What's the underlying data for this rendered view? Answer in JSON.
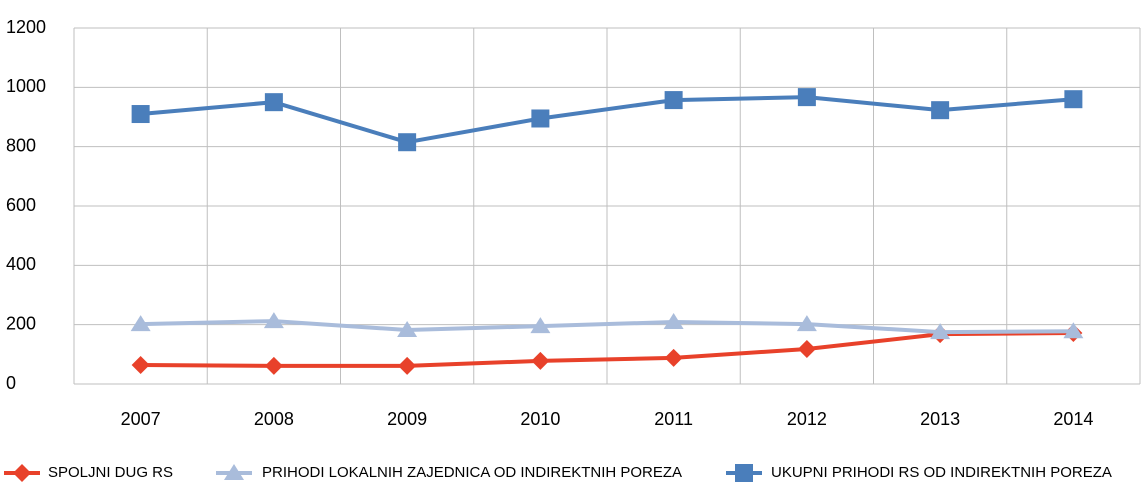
{
  "chart_data": {
    "type": "line",
    "categories": [
      "2007",
      "2008",
      "2009",
      "2010",
      "2011",
      "2012",
      "2013",
      "2014"
    ],
    "series": [
      {
        "name": "SPOLJNI DUG RS",
        "color": "#e8412a",
        "marker": "diamond",
        "values": [
          64,
          61,
          61,
          78,
          88,
          118,
          168,
          172
        ]
      },
      {
        "name": "PRIHODI LOKALNIH ZAJEDNICA OD INDIREKTNIH POREZA",
        "color": "#a9bcdb",
        "marker": "triangle",
        "values": [
          202,
          212,
          182,
          195,
          209,
          202,
          175,
          178
        ]
      },
      {
        "name": "UKUPNI PRIHODI RS OD INDIREKTNIH POREZA",
        "color": "#4a7ebb",
        "marker": "square",
        "values": [
          910,
          950,
          815,
          895,
          957,
          967,
          923,
          960
        ]
      }
    ],
    "ylim": [
      0,
      1200
    ],
    "yticks": [
      0,
      200,
      400,
      600,
      800,
      1000,
      1200
    ],
    "grid": true,
    "legend": "bottom"
  }
}
